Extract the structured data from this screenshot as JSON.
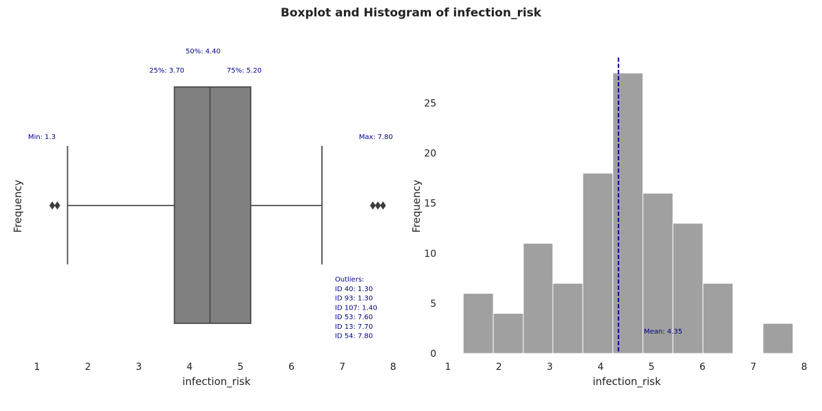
{
  "title": "Boxplot and Histogram of infection_risk",
  "chart_data": [
    {
      "type": "box",
      "xlabel": "infection_risk",
      "ylabel": "Frequency",
      "xlim": [
        1,
        8
      ],
      "xticks": [
        1,
        2,
        3,
        4,
        5,
        6,
        7,
        8
      ],
      "box_color": "#808080",
      "stats": {
        "whisker_low": 1.6,
        "q1": 3.7,
        "median": 4.4,
        "q3": 5.2,
        "whisker_high": 6.6
      },
      "outlier_points": [
        1.3,
        1.4,
        7.6,
        7.7,
        7.8
      ],
      "labels": {
        "min": "Min: 1.3",
        "q1": "25%: 3.70",
        "median": "50%: 4.40",
        "q3": "75%: 5.20",
        "max": "Max: 7.80"
      },
      "outliers_title": "Outliers:",
      "outliers": [
        "ID 40: 1.30",
        "ID 93: 1.30",
        "ID 107: 1.40",
        "ID 53: 7.60",
        "ID 13: 7.70",
        "ID 54: 7.80"
      ]
    },
    {
      "type": "bar",
      "xlabel": "infection_risk",
      "ylabel": "Frequency",
      "xlim": [
        1,
        8
      ],
      "ylim": [
        0,
        29
      ],
      "xticks": [
        1,
        2,
        3,
        4,
        5,
        6,
        7,
        8
      ],
      "yticks": [
        0,
        5,
        10,
        15,
        20,
        25
      ],
      "bar_color": "#a0a0a0",
      "mean_color": "#00008b",
      "bins": [
        {
          "x0": 1.3,
          "x1": 1.89,
          "count": 6
        },
        {
          "x0": 1.89,
          "x1": 2.48,
          "count": 4
        },
        {
          "x0": 2.48,
          "x1": 3.06,
          "count": 11
        },
        {
          "x0": 3.06,
          "x1": 3.65,
          "count": 7
        },
        {
          "x0": 3.65,
          "x1": 4.24,
          "count": 18
        },
        {
          "x0": 4.24,
          "x1": 4.83,
          "count": 28
        },
        {
          "x0": 4.83,
          "x1": 5.42,
          "count": 16
        },
        {
          "x0": 5.42,
          "x1": 6.01,
          "count": 13
        },
        {
          "x0": 6.01,
          "x1": 6.6,
          "count": 7
        },
        {
          "x0": 6.6,
          "x1": 7.19,
          "count": 0
        },
        {
          "x0": 7.19,
          "x1": 7.78,
          "count": 3
        }
      ],
      "mean": 4.35,
      "mean_label": "Mean: 4.35"
    }
  ]
}
